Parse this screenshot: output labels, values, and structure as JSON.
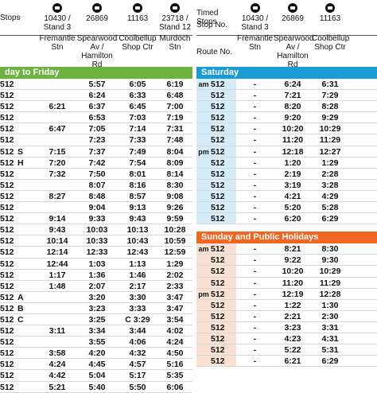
{
  "left": {
    "header": {
      "timed_stops_label": "Stops",
      "stop_no_label": "",
      "route_no_label": "",
      "stops": [
        {
          "number": "10430 /\nStand 3",
          "name": "Fremantle\nStn"
        },
        {
          "number": "26869",
          "name": "Spearwood\nAv /\nHamilton Rd"
        },
        {
          "number": "11163",
          "name": "Coolbellup\nShop Ctr"
        },
        {
          "number": "23718 /\nStand 12",
          "name": "Murdoch\nStn"
        }
      ]
    },
    "band": "day to Friday",
    "rows": [
      {
        "route": "512",
        "note": "",
        "times": [
          "",
          "5:57",
          "6:05",
          "6:19"
        ]
      },
      {
        "route": "512",
        "note": "",
        "times": [
          "",
          "6:24",
          "6:33",
          "6:48"
        ]
      },
      {
        "route": "512",
        "note": "",
        "times": [
          "6:21",
          "6:37",
          "6:45",
          "7:00"
        ]
      },
      {
        "route": "512",
        "note": "",
        "times": [
          "",
          "6:53",
          "7:03",
          "7:19"
        ]
      },
      {
        "route": "512",
        "note": "",
        "times": [
          "6:47",
          "7:05",
          "7:14",
          "7:31"
        ]
      },
      {
        "route": "512",
        "note": "",
        "times": [
          "",
          "7:23",
          "7:33",
          "7:48"
        ]
      },
      {
        "route": "512",
        "note": "S",
        "times": [
          "7:15",
          "7:37",
          "7:49",
          "8:04"
        ]
      },
      {
        "route": "512",
        "note": "H",
        "times": [
          "7:20",
          "7:42",
          "7:54",
          "8:09"
        ]
      },
      {
        "route": "512",
        "note": "",
        "times": [
          "7:32",
          "7:50",
          "8:01",
          "8:14"
        ]
      },
      {
        "route": "512",
        "note": "",
        "times": [
          "",
          "8:07",
          "8:16",
          "8:30"
        ]
      },
      {
        "route": "512",
        "note": "",
        "times": [
          "8:27",
          "8:48",
          "8:57",
          "9:08"
        ]
      },
      {
        "route": "512",
        "note": "",
        "times": [
          "",
          "9:04",
          "9:13",
          "9:26"
        ]
      },
      {
        "route": "512",
        "note": "",
        "times": [
          "9:14",
          "9:33",
          "9:43",
          "9:59"
        ]
      },
      {
        "route": "512",
        "note": "",
        "times": [
          "9:43",
          "10:03",
          "10:13",
          "10:28"
        ]
      },
      {
        "route": "512",
        "note": "",
        "times": [
          "10:14",
          "10:33",
          "10:43",
          "10:59"
        ]
      },
      {
        "route": "512",
        "note": "",
        "times": [
          "12:14",
          "12:33",
          "12:43",
          "12:59"
        ]
      },
      {
        "route": "512",
        "note": "",
        "times": [
          "12:44",
          "1:03",
          "1:13",
          "1:29"
        ]
      },
      {
        "route": "512",
        "note": "",
        "times": [
          "1:17",
          "1:36",
          "1:46",
          "2:02"
        ]
      },
      {
        "route": "512",
        "note": "",
        "times": [
          "1:48",
          "2:07",
          "2:17",
          "2:33"
        ]
      },
      {
        "route": "512",
        "note": "A",
        "times": [
          "",
          "3:20",
          "3:30",
          "3:47"
        ]
      },
      {
        "route": "512",
        "note": "B",
        "times": [
          "",
          "3:23",
          "3:33",
          "3:47"
        ]
      },
      {
        "route": "512",
        "note": "C",
        "times": [
          "",
          "3:25",
          "C  3:29",
          "3:54"
        ]
      },
      {
        "route": "512",
        "note": "",
        "times": [
          "3:11",
          "3:34",
          "3:44",
          "4:02"
        ]
      },
      {
        "route": "512",
        "note": "",
        "times": [
          "",
          "3:55",
          "4:06",
          "4:24"
        ]
      },
      {
        "route": "512",
        "note": "",
        "times": [
          "3:58",
          "4:20",
          "4:32",
          "4:50"
        ]
      },
      {
        "route": "512",
        "note": "",
        "times": [
          "4:24",
          "4:45",
          "4:57",
          "5:16"
        ]
      },
      {
        "route": "512",
        "note": "",
        "times": [
          "4:42",
          "5:04",
          "5:17",
          "5:35"
        ]
      },
      {
        "route": "512",
        "note": "",
        "times": [
          "5:21",
          "5:40",
          "5:50",
          "6:06"
        ]
      }
    ]
  },
  "right": {
    "header": {
      "timed_stops_label": "Timed Stops",
      "stop_no_label": "Stop No.",
      "route_no_label": "Route No.",
      "stops": [
        {
          "number": "10430 /\nStand 3",
          "name": "Fremantle\nStn"
        },
        {
          "number": "26869",
          "name": "Spearwood\nAv /\nHamilton Rd"
        },
        {
          "number": "11163",
          "name": "Coolbellup\nShop Ctr"
        }
      ]
    },
    "saturday": {
      "band": "Saturday",
      "rows": [
        {
          "period": "am",
          "route": "512",
          "times": [
            "-",
            "6:24",
            "6:31"
          ]
        },
        {
          "period": "",
          "route": "512",
          "times": [
            "-",
            "7:21",
            "7:29"
          ]
        },
        {
          "period": "",
          "route": "512",
          "times": [
            "-",
            "8:20",
            "8:28"
          ]
        },
        {
          "period": "",
          "route": "512",
          "times": [
            "-",
            "9:20",
            "9:29"
          ]
        },
        {
          "period": "",
          "route": "512",
          "times": [
            "-",
            "10:20",
            "10:29"
          ]
        },
        {
          "period": "",
          "route": "512",
          "times": [
            "-",
            "11:20",
            "11:29"
          ]
        },
        {
          "period": "pm",
          "route": "512",
          "times": [
            "-",
            "12:18",
            "12:27"
          ]
        },
        {
          "period": "",
          "route": "512",
          "times": [
            "-",
            "1:20",
            "1:29"
          ]
        },
        {
          "period": "",
          "route": "512",
          "times": [
            "-",
            "2:19",
            "2:28"
          ]
        },
        {
          "period": "",
          "route": "512",
          "times": [
            "-",
            "3:19",
            "3:28"
          ]
        },
        {
          "period": "",
          "route": "512",
          "times": [
            "-",
            "4:21",
            "4:29"
          ]
        },
        {
          "period": "",
          "route": "512",
          "times": [
            "-",
            "5:20",
            "5:28"
          ]
        },
        {
          "period": "",
          "route": "512",
          "times": [
            "-",
            "6:20",
            "6:29"
          ]
        }
      ]
    },
    "sunday": {
      "band": "Sunday and Public Holidays",
      "rows": [
        {
          "period": "am",
          "route": "512",
          "times": [
            "-",
            "8:21",
            "8:30"
          ]
        },
        {
          "period": "",
          "route": "512",
          "times": [
            "-",
            "9:22",
            "9:30"
          ]
        },
        {
          "period": "",
          "route": "512",
          "times": [
            "-",
            "10:20",
            "10:29"
          ]
        },
        {
          "period": "",
          "route": "512",
          "times": [
            "-",
            "11:20",
            "11:29"
          ]
        },
        {
          "period": "pm",
          "route": "512",
          "times": [
            "-",
            "12:19",
            "12:28"
          ]
        },
        {
          "period": "",
          "route": "512",
          "times": [
            "-",
            "1:22",
            "1:30"
          ]
        },
        {
          "period": "",
          "route": "512",
          "times": [
            "-",
            "2:21",
            "2:30"
          ]
        },
        {
          "period": "",
          "route": "512",
          "times": [
            "-",
            "3:23",
            "3:31"
          ]
        },
        {
          "period": "",
          "route": "512",
          "times": [
            "-",
            "4:23",
            "4:31"
          ]
        },
        {
          "period": "",
          "route": "512",
          "times": [
            "-",
            "5:22",
            "5:31"
          ]
        },
        {
          "period": "",
          "route": "512",
          "times": [
            "-",
            "6:21",
            "6:29"
          ]
        }
      ]
    }
  }
}
